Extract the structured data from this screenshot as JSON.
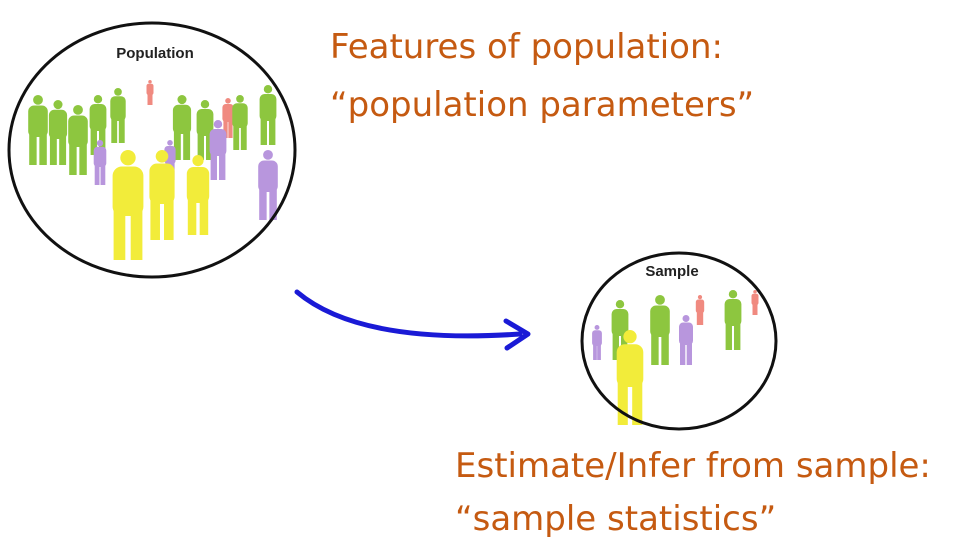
{
  "population": {
    "label": "Population"
  },
  "sample": {
    "label": "Sample"
  },
  "population_text": {
    "lines": [
      "Features of population:",
      "“population parameters”"
    ]
  },
  "sample_text": {
    "lines": [
      "Estimate/Infer from sample:",
      "“sample statistics”"
    ]
  }
}
